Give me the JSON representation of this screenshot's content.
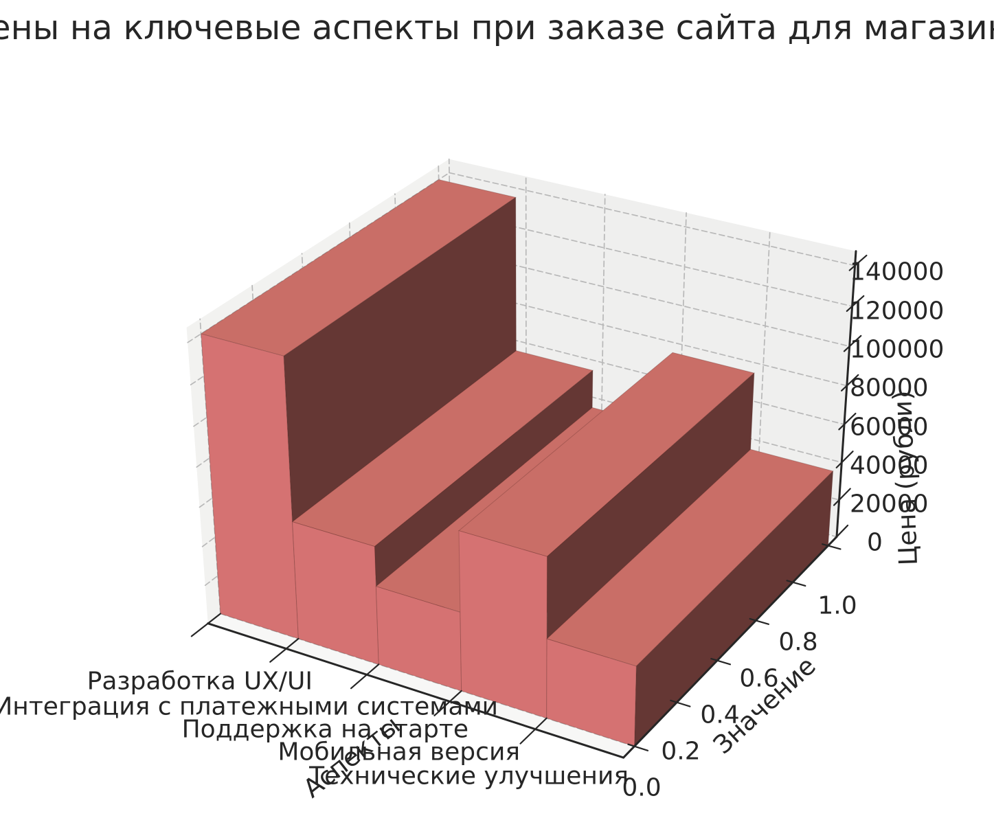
{
  "title": "Цены на ключевые аспекты при заказе сайта для магазина",
  "chart_data": {
    "type": "bar",
    "subtype": "bar3d",
    "categories": [
      "Разработка UX/UI",
      "Интеграция с платежными системами",
      "Поддержка на старте",
      "Мобильная версия",
      "Технические улучшения"
    ],
    "values": [
      140000,
      60000,
      40000,
      80000,
      40000
    ],
    "xlabel": "Аспекты",
    "ylabel": "Значение",
    "zlabel": "Цена (рубли)",
    "y_tick_labels": [
      "0.0",
      "0.2",
      "0.4",
      "0.6",
      "0.8",
      "1.0"
    ],
    "z_tick_labels": [
      "0",
      "20000",
      "40000",
      "60000",
      "80000",
      "100000",
      "120000",
      "140000"
    ],
    "zlim": [
      0,
      147000
    ],
    "grid": true,
    "legend": false,
    "colors": {
      "bar_front": "#d57272",
      "bar_top": "#c96e67",
      "bar_side": "#653734",
      "pane_floor": "#f7f7f6",
      "pane_left": "#f2f2f0",
      "pane_right": "#efefee",
      "grid_line": "#b8b8b8",
      "spine": "#262626",
      "text": "#262626"
    }
  }
}
